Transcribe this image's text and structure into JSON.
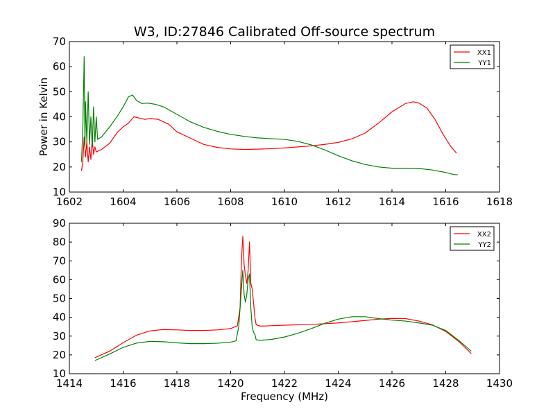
{
  "chart_data": [
    {
      "type": "line",
      "title": "W3, ID:27846 Calibrated Off-source spectrum",
      "xlabel": "",
      "ylabel": "Power in Kelvin",
      "xlim": [
        1602,
        1618
      ],
      "ylim": [
        10,
        70
      ],
      "xticks": [
        "1602",
        "1604",
        "1606",
        "1608",
        "1610",
        "1612",
        "1614",
        "1616",
        "1618"
      ],
      "yticks": [
        "10",
        "20",
        "30",
        "40",
        "50",
        "60",
        "70"
      ],
      "legend_position": "top-right",
      "grid": false,
      "series": [
        {
          "name": "XX1",
          "color": "#ff0000",
          "points": [
            [
              1602.45,
              18.5
            ],
            [
              1602.5,
              22
            ],
            [
              1602.55,
              32
            ],
            [
              1602.6,
              24
            ],
            [
              1602.65,
              30
            ],
            [
              1602.7,
              22
            ],
            [
              1602.75,
              28
            ],
            [
              1602.8,
              23
            ],
            [
              1602.85,
              31
            ],
            [
              1602.9,
              25
            ],
            [
              1602.95,
              28
            ],
            [
              1603.0,
              26
            ],
            [
              1603.2,
              27
            ],
            [
              1603.5,
              29.5
            ],
            [
              1603.8,
              34
            ],
            [
              1604.0,
              36
            ],
            [
              1604.2,
              37.5
            ],
            [
              1604.4,
              40
            ],
            [
              1604.6,
              39.5
            ],
            [
              1604.8,
              39
            ],
            [
              1605.0,
              39.3
            ],
            [
              1605.3,
              39
            ],
            [
              1605.5,
              38
            ],
            [
              1605.7,
              37
            ],
            [
              1606.0,
              34
            ],
            [
              1606.5,
              31.5
            ],
            [
              1607.0,
              29
            ],
            [
              1607.5,
              27.8
            ],
            [
              1608.0,
              27.2
            ],
            [
              1608.5,
              27
            ],
            [
              1609.0,
              27.1
            ],
            [
              1609.5,
              27.3
            ],
            [
              1610.0,
              27.6
            ],
            [
              1610.5,
              28
            ],
            [
              1611.0,
              28.4
            ],
            [
              1611.5,
              29
            ],
            [
              1612.0,
              29.8
            ],
            [
              1612.5,
              31.2
            ],
            [
              1613.0,
              33.5
            ],
            [
              1613.5,
              37.5
            ],
            [
              1614.0,
              42
            ],
            [
              1614.5,
              45.3
            ],
            [
              1614.8,
              46
            ],
            [
              1615.0,
              45.5
            ],
            [
              1615.3,
              43.5
            ],
            [
              1615.6,
              39
            ],
            [
              1615.9,
              33
            ],
            [
              1616.2,
              28
            ],
            [
              1616.4,
              25.5
            ]
          ]
        },
        {
          "name": "YY1",
          "color": "#008000",
          "points": [
            [
              1602.45,
              22
            ],
            [
              1602.5,
              35
            ],
            [
              1602.55,
              64
            ],
            [
              1602.58,
              28
            ],
            [
              1602.6,
              46
            ],
            [
              1602.65,
              30
            ],
            [
              1602.7,
              50
            ],
            [
              1602.75,
              29
            ],
            [
              1602.8,
              40
            ],
            [
              1602.85,
              28
            ],
            [
              1602.9,
              44
            ],
            [
              1602.95,
              30
            ],
            [
              1603.0,
              40
            ],
            [
              1603.05,
              31
            ],
            [
              1603.2,
              32
            ],
            [
              1603.5,
              36
            ],
            [
              1603.8,
              40.5
            ],
            [
              1604.0,
              44
            ],
            [
              1604.2,
              48
            ],
            [
              1604.35,
              48.7
            ],
            [
              1604.5,
              46.5
            ],
            [
              1604.7,
              45.3
            ],
            [
              1604.9,
              45.5
            ],
            [
              1605.2,
              45
            ],
            [
              1605.5,
              44
            ],
            [
              1606.0,
              41
            ],
            [
              1606.5,
              38
            ],
            [
              1607.0,
              35.8
            ],
            [
              1607.5,
              34.2
            ],
            [
              1608.0,
              33
            ],
            [
              1608.5,
              32.2
            ],
            [
              1609.0,
              31.6
            ],
            [
              1609.5,
              31.3
            ],
            [
              1610.0,
              31
            ],
            [
              1610.5,
              30.2
            ],
            [
              1611.0,
              28.8
            ],
            [
              1611.5,
              26.8
            ],
            [
              1612.0,
              24.5
            ],
            [
              1612.5,
              22.5
            ],
            [
              1613.0,
              21
            ],
            [
              1613.5,
              20
            ],
            [
              1614.0,
              19.5
            ],
            [
              1614.5,
              19.5
            ],
            [
              1615.0,
              19.4
            ],
            [
              1615.5,
              18.8
            ],
            [
              1616.0,
              17.8
            ],
            [
              1616.3,
              17
            ],
            [
              1616.45,
              16.9
            ]
          ]
        }
      ]
    },
    {
      "type": "line",
      "title": "",
      "xlabel": "Frequency (MHz)",
      "ylabel": "",
      "xlim": [
        1414,
        1430
      ],
      "ylim": [
        10,
        90
      ],
      "xticks": [
        "1414",
        "1416",
        "1418",
        "1420",
        "1422",
        "1424",
        "1426",
        "1428",
        "1430"
      ],
      "yticks": [
        "10",
        "20",
        "30",
        "40",
        "50",
        "60",
        "70",
        "80",
        "90"
      ],
      "legend_position": "top-right",
      "grid": false,
      "series": [
        {
          "name": "XX2",
          "color": "#ff0000",
          "points": [
            [
              1414.95,
              18.5
            ],
            [
              1415.5,
              22
            ],
            [
              1416.0,
              26.5
            ],
            [
              1416.5,
              30.5
            ],
            [
              1417.0,
              32.8
            ],
            [
              1417.5,
              33.5
            ],
            [
              1418.0,
              33.3
            ],
            [
              1418.5,
              33
            ],
            [
              1419.0,
              33
            ],
            [
              1419.5,
              33.3
            ],
            [
              1420.0,
              34
            ],
            [
              1420.25,
              35.5
            ],
            [
              1420.35,
              45
            ],
            [
              1420.4,
              70
            ],
            [
              1420.45,
              83
            ],
            [
              1420.5,
              68
            ],
            [
              1420.55,
              62
            ],
            [
              1420.6,
              58
            ],
            [
              1420.65,
              65
            ],
            [
              1420.7,
              80
            ],
            [
              1420.75,
              58
            ],
            [
              1420.8,
              55
            ],
            [
              1420.85,
              48
            ],
            [
              1420.9,
              40
            ],
            [
              1420.95,
              36
            ],
            [
              1421.1,
              35.3
            ],
            [
              1421.5,
              35.5
            ],
            [
              1422.0,
              35.8
            ],
            [
              1423.0,
              36.2
            ],
            [
              1424.0,
              37
            ],
            [
              1425.0,
              38.3
            ],
            [
              1425.5,
              39
            ],
            [
              1426.0,
              39.4
            ],
            [
              1426.5,
              39.3
            ],
            [
              1427.0,
              38
            ],
            [
              1427.5,
              36
            ],
            [
              1428.0,
              32.5
            ],
            [
              1428.5,
              27
            ],
            [
              1428.95,
              20.7
            ]
          ]
        },
        {
          "name": "YY2",
          "color": "#008000",
          "points": [
            [
              1414.95,
              17
            ],
            [
              1415.5,
              20.5
            ],
            [
              1416.0,
              24
            ],
            [
              1416.5,
              26.3
            ],
            [
              1417.0,
              27.2
            ],
            [
              1417.5,
              27
            ],
            [
              1418.0,
              26.4
            ],
            [
              1418.5,
              26
            ],
            [
              1419.0,
              26
            ],
            [
              1419.5,
              26.2
            ],
            [
              1420.0,
              26.8
            ],
            [
              1420.2,
              27.5
            ],
            [
              1420.3,
              35
            ],
            [
              1420.4,
              55
            ],
            [
              1420.45,
              65
            ],
            [
              1420.5,
              52
            ],
            [
              1420.55,
              48
            ],
            [
              1420.6,
              52
            ],
            [
              1420.65,
              60
            ],
            [
              1420.7,
              63
            ],
            [
              1420.75,
              45
            ],
            [
              1420.8,
              35
            ],
            [
              1420.85,
              32
            ],
            [
              1420.9,
              31
            ],
            [
              1420.95,
              28
            ],
            [
              1421.1,
              27.8
            ],
            [
              1421.5,
              28.2
            ],
            [
              1422.0,
              29.5
            ],
            [
              1422.5,
              31.5
            ],
            [
              1423.0,
              34
            ],
            [
              1423.5,
              36.8
            ],
            [
              1424.0,
              39
            ],
            [
              1424.5,
              40.3
            ],
            [
              1425.0,
              40.3
            ],
            [
              1425.5,
              39.3
            ],
            [
              1426.0,
              38.5
            ],
            [
              1426.5,
              38
            ],
            [
              1427.0,
              37
            ],
            [
              1427.5,
              35.8
            ],
            [
              1428.0,
              33
            ],
            [
              1428.5,
              27.5
            ],
            [
              1428.95,
              22
            ]
          ]
        }
      ]
    }
  ]
}
